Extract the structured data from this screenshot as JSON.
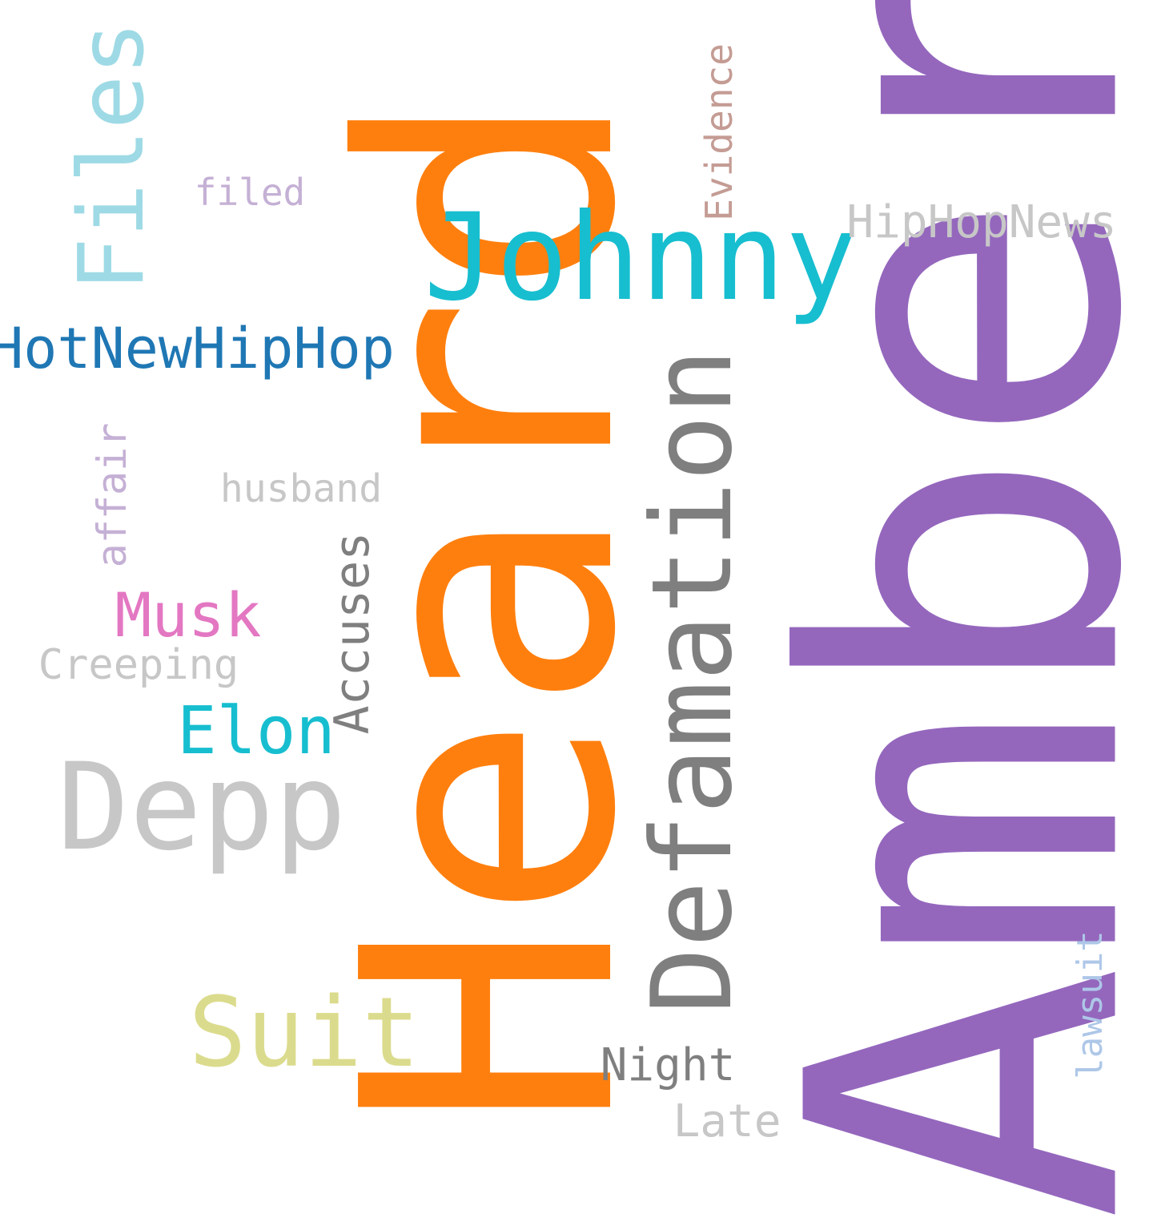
{
  "words": {
    "amber": {
      "text": "Amber",
      "color": "#9467bd"
    },
    "heard": {
      "text": "Heard",
      "color": "#ff7f0e"
    },
    "johnny": {
      "text": "Johnny",
      "color": "#17becf"
    },
    "defamation": {
      "text": "Defamation",
      "color": "#7f7f7f"
    },
    "files": {
      "text": "Files",
      "color": "#9edae5"
    },
    "depp": {
      "text": "Depp",
      "color": "#c7c7c7"
    },
    "suit": {
      "text": "Suit",
      "color": "#dbdb8d"
    },
    "hotnewhiphop": {
      "text": "HotNewHipHop",
      "color": "#1f77b4"
    },
    "elon": {
      "text": "Elon",
      "color": "#17becf"
    },
    "musk": {
      "text": "Musk",
      "color": "#e377c2"
    },
    "accuses": {
      "text": "Accuses",
      "color": "#7f7f7f"
    },
    "hiphopnews": {
      "text": "HipHopNews",
      "color": "#c7c7c7"
    },
    "night": {
      "text": "Night",
      "color": "#7f7f7f"
    },
    "late": {
      "text": "Late",
      "color": "#c7c7c7"
    },
    "creeping": {
      "text": "Creeping",
      "color": "#c7c7c7"
    },
    "evidence": {
      "text": "Evidence",
      "color": "#c49c94"
    },
    "affair": {
      "text": "affair",
      "color": "#c5b0d5"
    },
    "husband": {
      "text": "husband",
      "color": "#c7c7c7"
    },
    "filed": {
      "text": "filed",
      "color": "#c5b0d5"
    },
    "lawsuit": {
      "text": "lawsuit",
      "color": "#aec7e8"
    }
  }
}
